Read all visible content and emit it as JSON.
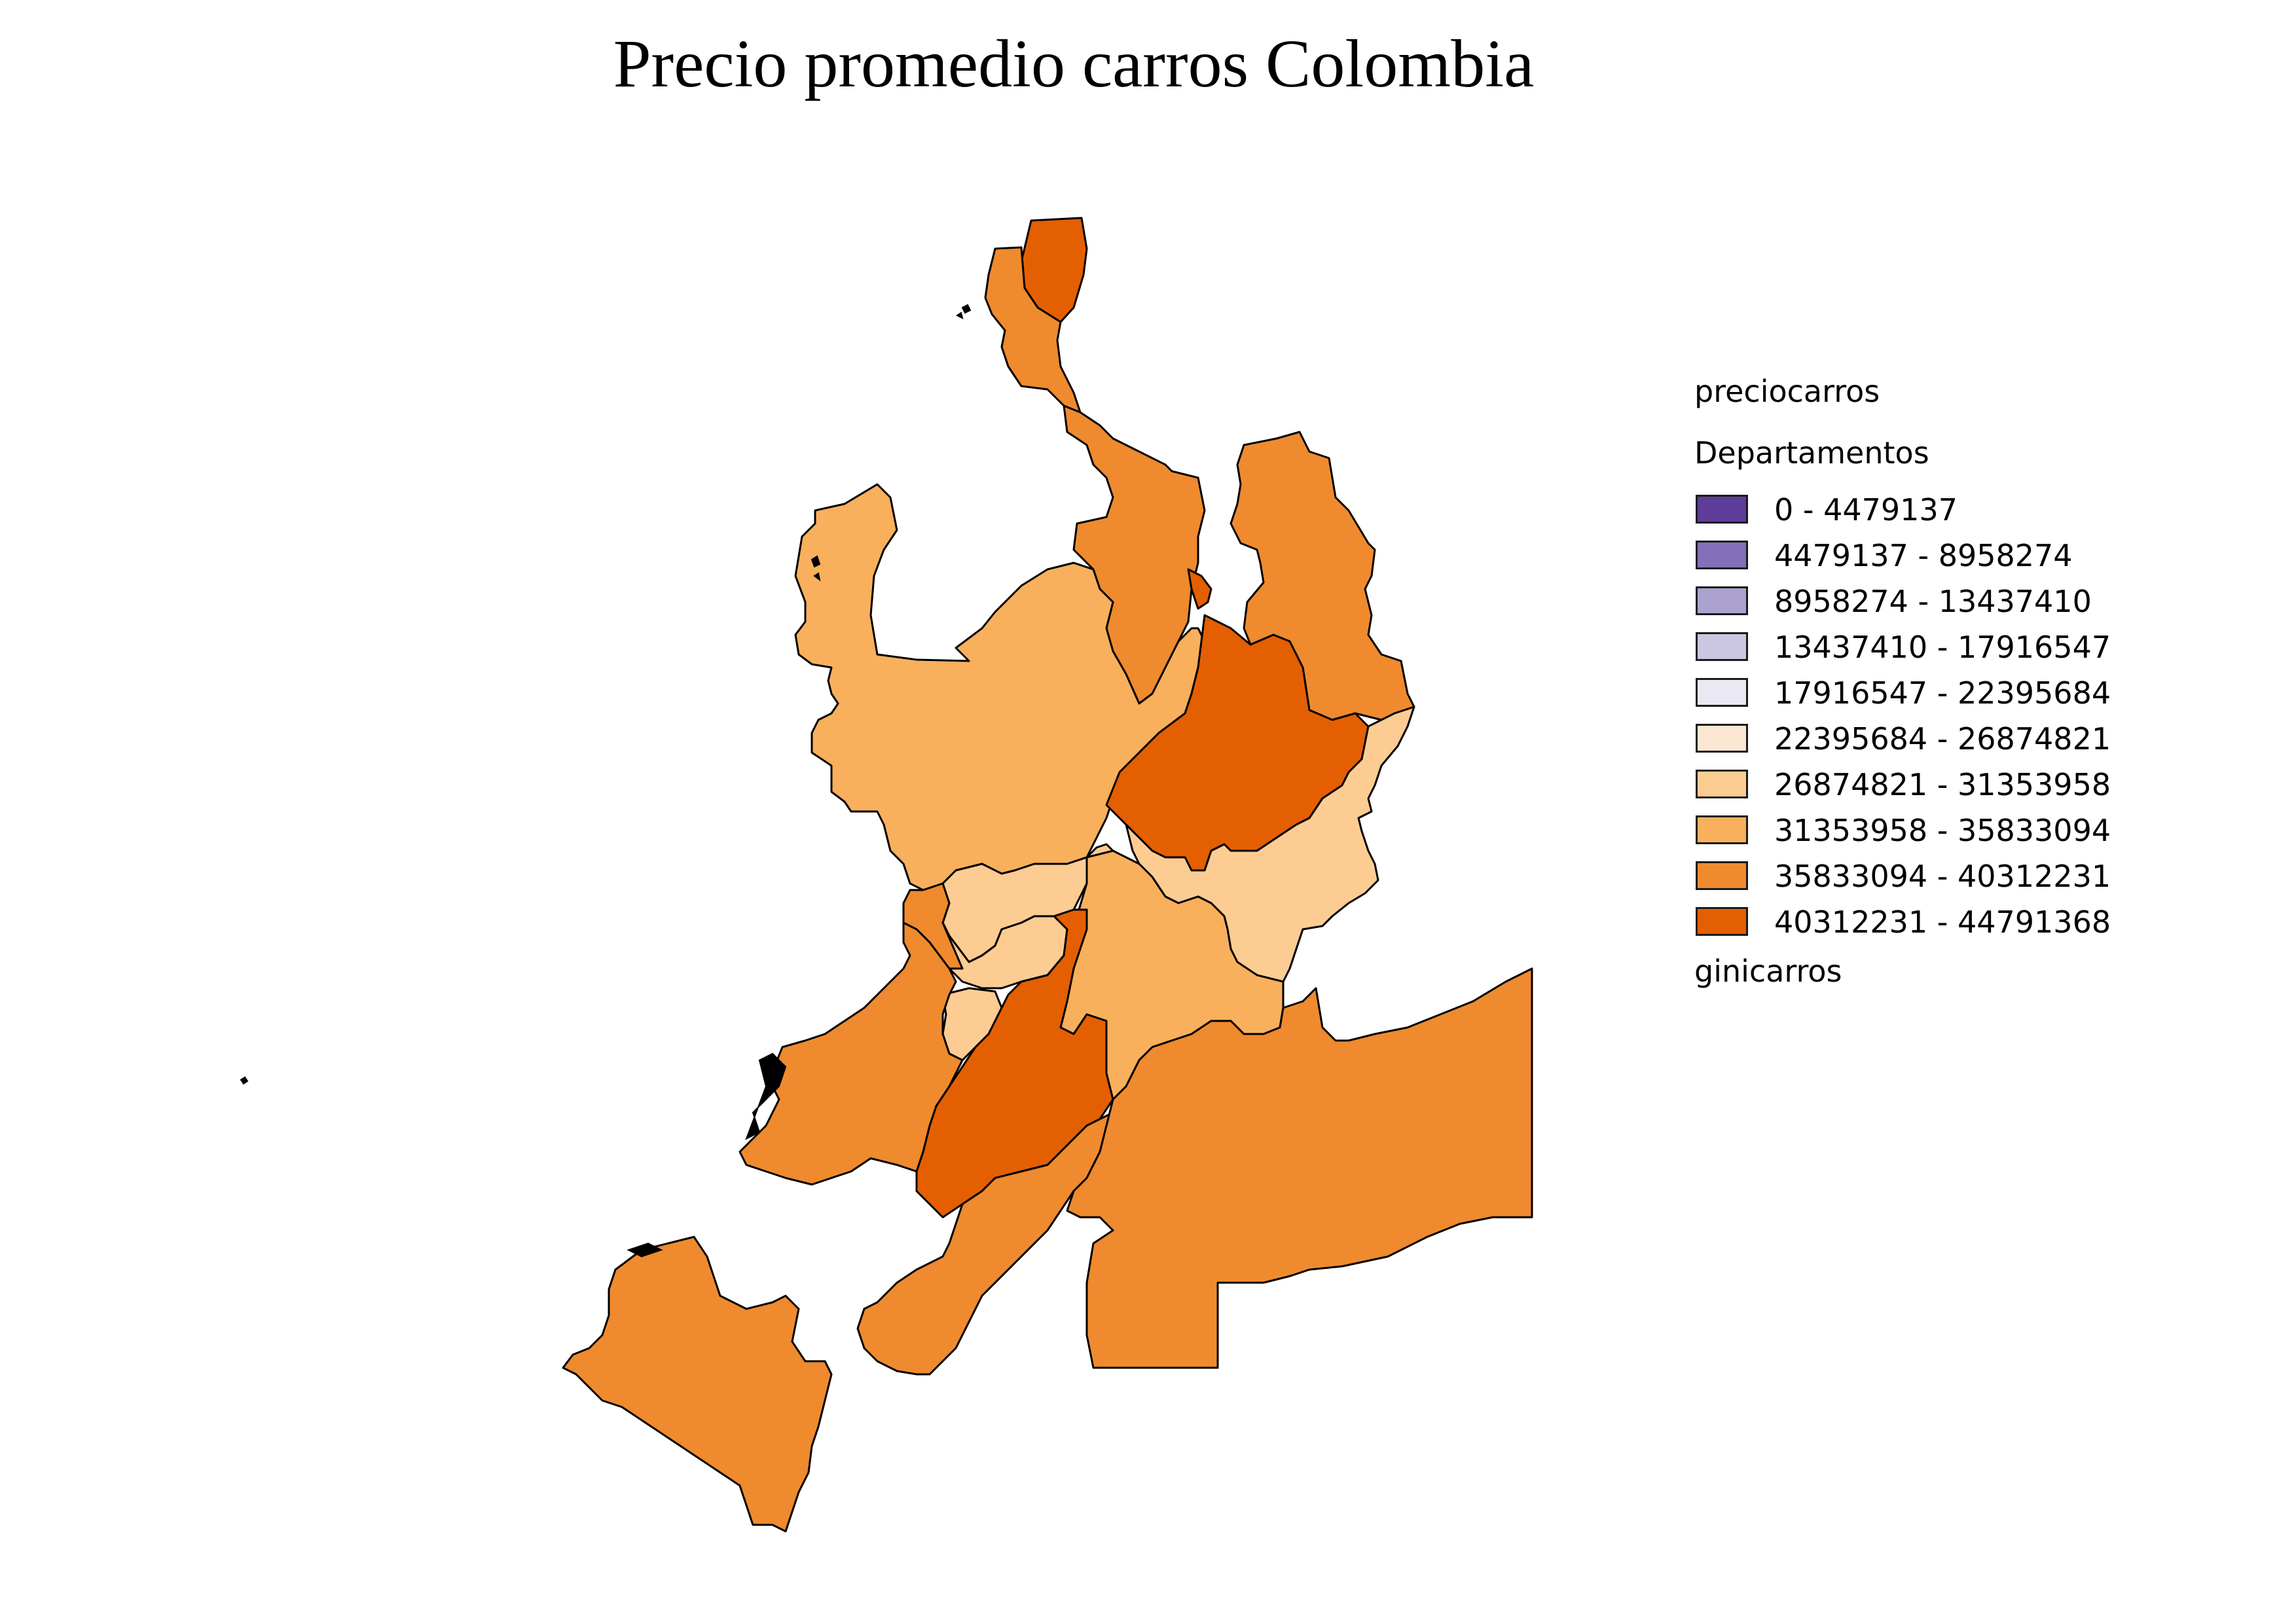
{
  "title": "Precio promedio carros Colombia",
  "legend": {
    "layer_name": "preciocarros",
    "group_name": "Departamentos",
    "classes": [
      {
        "label": "0 - 4479137",
        "color": "#5e3c99"
      },
      {
        "label": "4479137 - 8958274",
        "color": "#8470b9"
      },
      {
        "label": "8958274 - 13437410",
        "color": "#aba2d0"
      },
      {
        "label": "13437410 - 17916547",
        "color": "#cbc6e2"
      },
      {
        "label": "17916547 - 22395684",
        "color": "#eae8f3"
      },
      {
        "label": "22395684 - 26874821",
        "color": "#fbe6d4"
      },
      {
        "label": "26874821 - 31353958",
        "color": "#fdcc93"
      },
      {
        "label": "31353958 - 35833094",
        "color": "#f9b05c"
      },
      {
        "label": "35833094 - 40312231",
        "color": "#ef8a2e"
      },
      {
        "label": "40312231 - 44791368",
        "color": "#e45f02"
      }
    ],
    "second_layer_name": "ginicarros"
  },
  "map": {
    "stroke_color": "#000000",
    "regions": [
      {
        "class": 9,
        "name": "guajira-north"
      },
      {
        "class": 8,
        "name": "magdalena-coast"
      },
      {
        "class": 8,
        "name": "cesar"
      },
      {
        "class": 8,
        "name": "norte-santander"
      },
      {
        "class": 9,
        "name": "arauca-strip"
      },
      {
        "class": 7,
        "name": "antioquia-bolivar"
      },
      {
        "class": 9,
        "name": "boyaca-casanare"
      },
      {
        "class": 6,
        "name": "meta-north"
      },
      {
        "class": 6,
        "name": "cundinamarca"
      },
      {
        "class": 7,
        "name": "tolima"
      },
      {
        "class": 8,
        "name": "risaralda"
      },
      {
        "class": 6,
        "name": "caldas"
      },
      {
        "class": 6,
        "name": "quindio"
      },
      {
        "class": 9,
        "name": "huila"
      },
      {
        "class": 8,
        "name": "valle"
      },
      {
        "class": 8,
        "name": "caqueta"
      },
      {
        "class": 8,
        "name": "amazonas-vaupes"
      },
      {
        "class": 8,
        "name": "narino-cauca"
      }
    ]
  }
}
